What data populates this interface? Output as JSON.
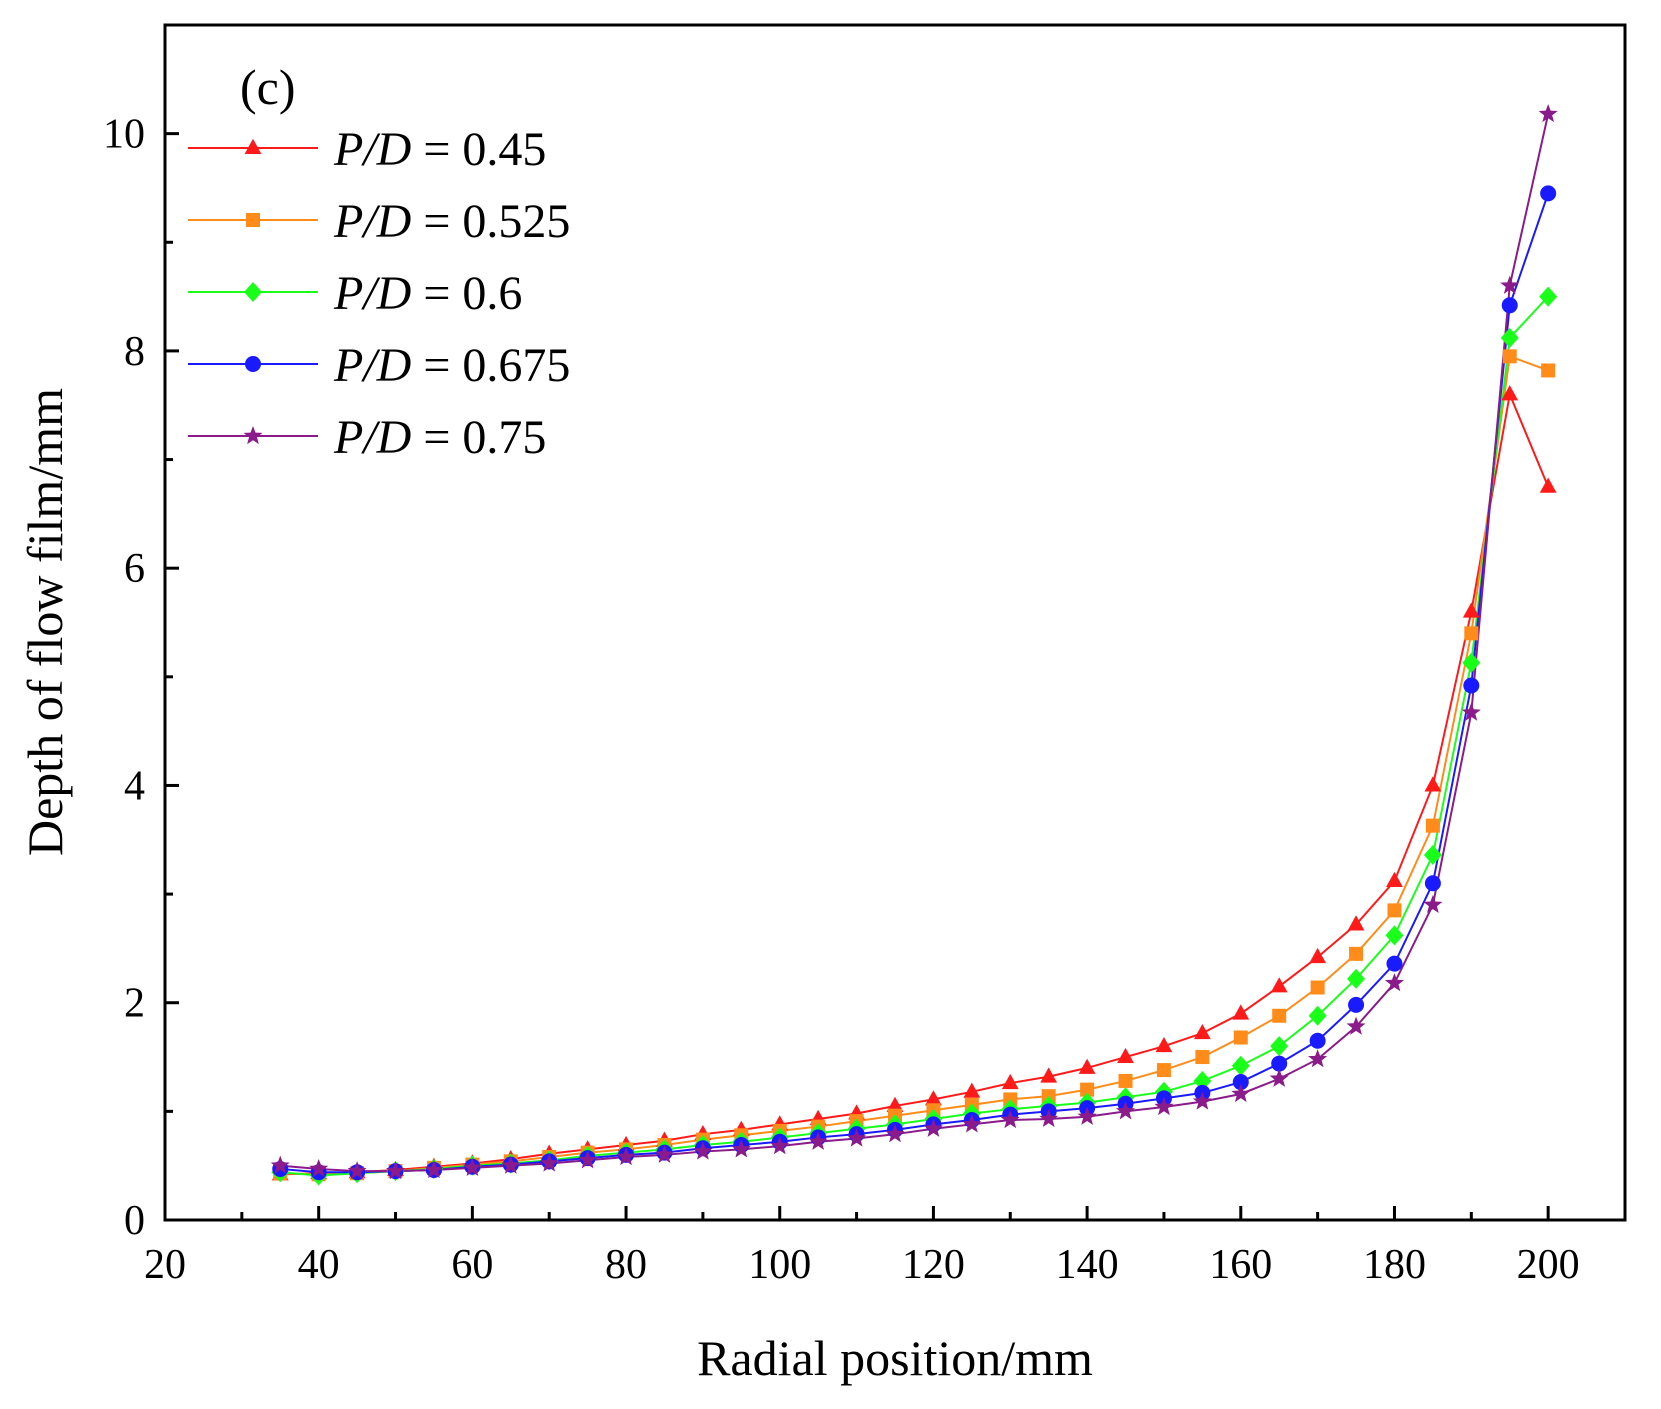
{
  "chart_data": {
    "type": "line",
    "panel_label": "(c)",
    "xlabel": "Radial position/mm",
    "ylabel": "Depth of flow film/mm",
    "xlim": [
      20,
      210
    ],
    "ylim": [
      0,
      11
    ],
    "x_ticks": [
      "20",
      "40",
      "60",
      "80",
      "100",
      "120",
      "140",
      "160",
      "180",
      "200"
    ],
    "y_ticks": [
      "0",
      "2",
      "4",
      "6",
      "8",
      "10"
    ],
    "legend_position": "top-left",
    "x": [
      35,
      40,
      45,
      50,
      55,
      60,
      65,
      70,
      75,
      80,
      85,
      90,
      95,
      100,
      105,
      110,
      115,
      120,
      125,
      130,
      135,
      140,
      145,
      150,
      155,
      160,
      165,
      170,
      175,
      180,
      185,
      190,
      195,
      200
    ],
    "series": [
      {
        "name_prefix": "P/D",
        "name_suffix": " = 0.45",
        "color": "#ff1a1a",
        "marker": "triangle",
        "values": [
          0.42,
          0.43,
          0.44,
          0.46,
          0.49,
          0.52,
          0.56,
          0.61,
          0.65,
          0.69,
          0.73,
          0.79,
          0.83,
          0.88,
          0.93,
          0.98,
          1.05,
          1.11,
          1.18,
          1.26,
          1.32,
          1.4,
          1.5,
          1.6,
          1.72,
          1.9,
          2.15,
          2.42,
          2.72,
          3.12,
          4.0,
          5.6,
          7.6,
          6.75
        ]
      },
      {
        "name_prefix": "P/D",
        "name_suffix": " = 0.525",
        "color": "#ff8c1a",
        "marker": "square",
        "values": [
          0.43,
          0.42,
          0.43,
          0.45,
          0.48,
          0.51,
          0.54,
          0.58,
          0.62,
          0.65,
          0.69,
          0.74,
          0.78,
          0.82,
          0.86,
          0.91,
          0.96,
          1.01,
          1.06,
          1.11,
          1.14,
          1.2,
          1.28,
          1.38,
          1.5,
          1.68,
          1.88,
          2.14,
          2.45,
          2.85,
          3.63,
          5.4,
          7.95,
          7.82
        ]
      },
      {
        "name_prefix": "P/D",
        "name_suffix": " = 0.6",
        "color": "#1aff1a",
        "marker": "diamond",
        "values": [
          0.44,
          0.41,
          0.43,
          0.45,
          0.47,
          0.5,
          0.52,
          0.55,
          0.59,
          0.62,
          0.65,
          0.69,
          0.72,
          0.76,
          0.8,
          0.84,
          0.88,
          0.93,
          0.98,
          1.02,
          1.05,
          1.08,
          1.13,
          1.18,
          1.28,
          1.42,
          1.6,
          1.88,
          2.22,
          2.62,
          3.36,
          5.13,
          8.12,
          8.5
        ]
      },
      {
        "name_prefix": "P/D",
        "name_suffix": " = 0.675",
        "color": "#1a1aff",
        "marker": "circle",
        "values": [
          0.47,
          0.44,
          0.44,
          0.45,
          0.46,
          0.49,
          0.51,
          0.54,
          0.57,
          0.6,
          0.62,
          0.66,
          0.69,
          0.72,
          0.76,
          0.79,
          0.83,
          0.88,
          0.92,
          0.97,
          1.0,
          1.03,
          1.07,
          1.12,
          1.17,
          1.27,
          1.44,
          1.65,
          1.98,
          2.36,
          3.1,
          4.92,
          8.42,
          9.45
        ]
      },
      {
        "name_prefix": "P/D",
        "name_suffix": " = 0.75",
        "color": "#8b1a8b",
        "marker": "star",
        "values": [
          0.5,
          0.47,
          0.45,
          0.45,
          0.46,
          0.48,
          0.5,
          0.52,
          0.55,
          0.58,
          0.6,
          0.63,
          0.65,
          0.68,
          0.72,
          0.75,
          0.79,
          0.84,
          0.88,
          0.92,
          0.93,
          0.95,
          1.0,
          1.04,
          1.09,
          1.16,
          1.3,
          1.48,
          1.78,
          2.18,
          2.9,
          4.67,
          8.6,
          10.18
        ]
      }
    ]
  }
}
